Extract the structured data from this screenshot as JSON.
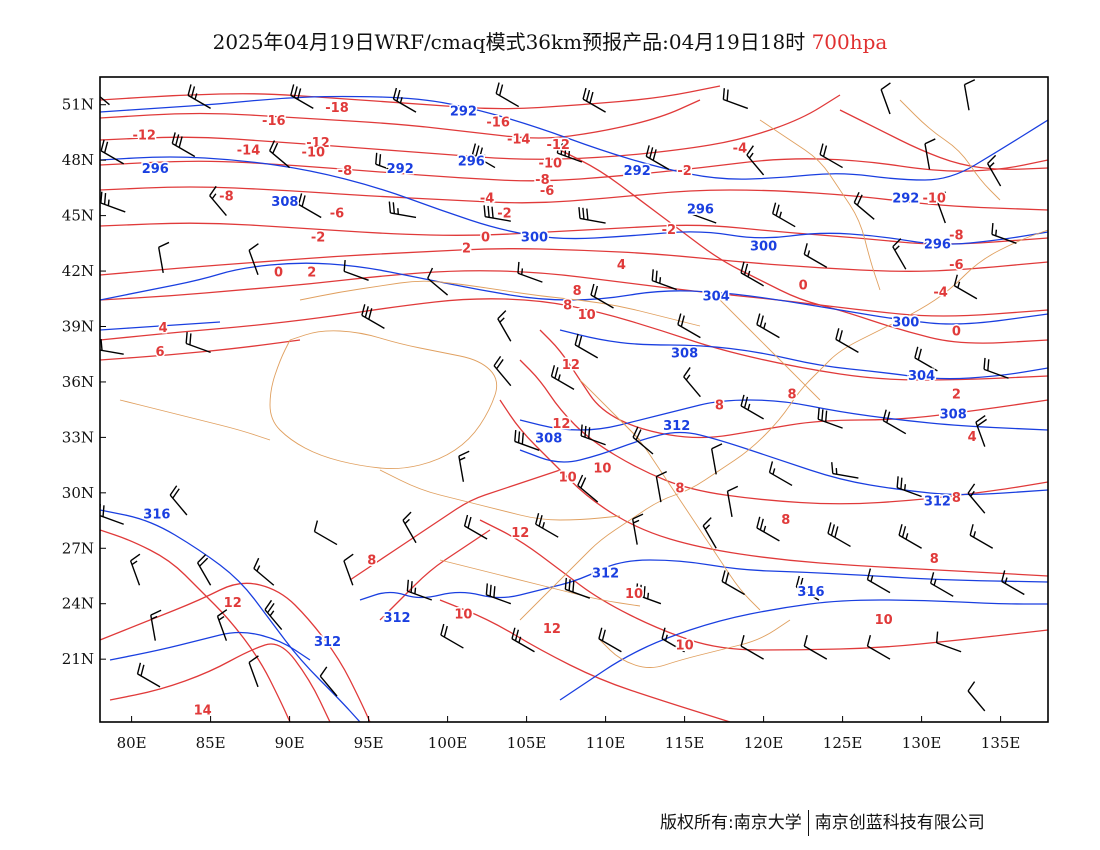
{
  "title": {
    "main": "2025年04月19日WRF/cmaq模式36km预报产品:04月19日18时",
    "level": "700hpa"
  },
  "footer": {
    "left": "版权所有:南京大学",
    "right": "南京创蓝科技有限公司"
  },
  "colors": {
    "height_contour": "#1a3fe0",
    "temperature_contour": "#e03a3a",
    "boundary": "#e0a060",
    "wind_barb": "#000000"
  },
  "axes": {
    "lon_ticks": [
      "80E",
      "85E",
      "90E",
      "95E",
      "100E",
      "105E",
      "110E",
      "115E",
      "120E",
      "125E",
      "130E",
      "135E"
    ],
    "lat_ticks": [
      "51N",
      "48N",
      "45N",
      "42N",
      "39N",
      "36N",
      "33N",
      "30N",
      "27N",
      "24N",
      "21N"
    ]
  },
  "height_labels": [
    {
      "text": "292",
      "lon": 97,
      "lat": 47.5
    },
    {
      "text": "296",
      "lon": 81.5,
      "lat": 47.5
    },
    {
      "text": "292",
      "lon": 101,
      "lat": 50.6
    },
    {
      "text": "296",
      "lon": 101.5,
      "lat": 47.9
    },
    {
      "text": "292",
      "lon": 112,
      "lat": 47.4
    },
    {
      "text": "292",
      "lon": 129,
      "lat": 45.9
    },
    {
      "text": "308",
      "lon": 89.7,
      "lat": 45.7
    },
    {
      "text": "296",
      "lon": 116,
      "lat": 45.3
    },
    {
      "text": "300",
      "lon": 105.5,
      "lat": 43.8
    },
    {
      "text": "300",
      "lon": 120,
      "lat": 43.3
    },
    {
      "text": "296",
      "lon": 131,
      "lat": 43.4
    },
    {
      "text": "304",
      "lon": 117,
      "lat": 40.6
    },
    {
      "text": "300",
      "lon": 129,
      "lat": 39.2
    },
    {
      "text": "308",
      "lon": 115,
      "lat": 37.5
    },
    {
      "text": "304",
      "lon": 130,
      "lat": 36.3
    },
    {
      "text": "308",
      "lon": 132,
      "lat": 34.2
    },
    {
      "text": "312",
      "lon": 114.5,
      "lat": 33.6
    },
    {
      "text": "308",
      "lon": 106.4,
      "lat": 32.9
    },
    {
      "text": "312",
      "lon": 131,
      "lat": 29.5
    },
    {
      "text": "316",
      "lon": 81.6,
      "lat": 28.8
    },
    {
      "text": "312",
      "lon": 110,
      "lat": 25.6
    },
    {
      "text": "316",
      "lon": 123,
      "lat": 24.6
    },
    {
      "text": "312",
      "lon": 96.8,
      "lat": 23.2
    },
    {
      "text": "312",
      "lon": 92.4,
      "lat": 21.9
    }
  ],
  "temperature_labels": [
    {
      "text": "-16",
      "lon": 89,
      "lat": 50.1
    },
    {
      "text": "-18",
      "lon": 93,
      "lat": 50.8
    },
    {
      "text": "-16",
      "lon": 103.2,
      "lat": 50
    },
    {
      "text": "-12",
      "lon": 80.8,
      "lat": 49.3
    },
    {
      "text": "-14",
      "lon": 104.5,
      "lat": 49.1
    },
    {
      "text": "-12",
      "lon": 107,
      "lat": 48.8
    },
    {
      "text": "-12",
      "lon": 91.8,
      "lat": 48.9
    },
    {
      "text": "-14",
      "lon": 87.4,
      "lat": 48.5
    },
    {
      "text": "-10",
      "lon": 91.5,
      "lat": 48.4
    },
    {
      "text": "-10",
      "lon": 106.5,
      "lat": 47.8
    },
    {
      "text": "-4",
      "lon": 118.5,
      "lat": 48.6
    },
    {
      "text": "-8",
      "lon": 93.5,
      "lat": 47.4
    },
    {
      "text": "-8",
      "lon": 106,
      "lat": 46.9
    },
    {
      "text": "-2",
      "lon": 115,
      "lat": 47.4
    },
    {
      "text": "-6",
      "lon": 106.3,
      "lat": 46.3
    },
    {
      "text": "-10",
      "lon": 130.8,
      "lat": 45.9
    },
    {
      "text": "-8",
      "lon": 86,
      "lat": 46
    },
    {
      "text": "-4",
      "lon": 102.5,
      "lat": 45.9
    },
    {
      "text": "-6",
      "lon": 93,
      "lat": 45.1
    },
    {
      "text": "-2",
      "lon": 103.6,
      "lat": 45.1
    },
    {
      "text": "-8",
      "lon": 132.2,
      "lat": 43.9
    },
    {
      "text": "-2",
      "lon": 91.8,
      "lat": 43.8
    },
    {
      "text": "0",
      "lon": 102.4,
      "lat": 43.8
    },
    {
      "text": "-2",
      "lon": 114,
      "lat": 44.2
    },
    {
      "text": "2",
      "lon": 101.2,
      "lat": 43.2
    },
    {
      "text": "-6",
      "lon": 132.2,
      "lat": 42.3
    },
    {
      "text": "4",
      "lon": 111,
      "lat": 42.3
    },
    {
      "text": "0",
      "lon": 89.3,
      "lat": 41.9
    },
    {
      "text": "2",
      "lon": 91.4,
      "lat": 41.9
    },
    {
      "text": "-4",
      "lon": 131.2,
      "lat": 40.8
    },
    {
      "text": "0",
      "lon": 122.5,
      "lat": 41.2
    },
    {
      "text": "8",
      "lon": 108.2,
      "lat": 40.9
    },
    {
      "text": "8",
      "lon": 107.6,
      "lat": 40.1
    },
    {
      "text": "10",
      "lon": 108.8,
      "lat": 39.6
    },
    {
      "text": "4",
      "lon": 82,
      "lat": 38.9
    },
    {
      "text": "0",
      "lon": 132.2,
      "lat": 38.7
    },
    {
      "text": "6",
      "lon": 81.8,
      "lat": 37.6
    },
    {
      "text": "12",
      "lon": 107.8,
      "lat": 36.9
    },
    {
      "text": "8",
      "lon": 121.8,
      "lat": 35.3
    },
    {
      "text": "2",
      "lon": 132.2,
      "lat": 35.3
    },
    {
      "text": "8",
      "lon": 117.2,
      "lat": 34.7
    },
    {
      "text": "12",
      "lon": 107.2,
      "lat": 33.7
    },
    {
      "text": "4",
      "lon": 133.2,
      "lat": 33
    },
    {
      "text": "10",
      "lon": 109.8,
      "lat": 31.3
    },
    {
      "text": "10",
      "lon": 107.6,
      "lat": 30.8
    },
    {
      "text": "8",
      "lon": 114.7,
      "lat": 30.2
    },
    {
      "text": "8",
      "lon": 132.2,
      "lat": 29.7
    },
    {
      "text": "12",
      "lon": 104.6,
      "lat": 27.8
    },
    {
      "text": "8",
      "lon": 121.4,
      "lat": 28.5
    },
    {
      "text": "8",
      "lon": 95.2,
      "lat": 26.3
    },
    {
      "text": "8",
      "lon": 130.8,
      "lat": 26.4
    },
    {
      "text": "10",
      "lon": 111.8,
      "lat": 24.5
    },
    {
      "text": "12",
      "lon": 86.4,
      "lat": 24
    },
    {
      "text": "10",
      "lon": 101,
      "lat": 23.4
    },
    {
      "text": "10",
      "lon": 127.6,
      "lat": 23.1
    },
    {
      "text": "12",
      "lon": 106.6,
      "lat": 22.6
    },
    {
      "text": "10",
      "lon": 115,
      "lat": 21.7
    },
    {
      "text": "14",
      "lon": 84.5,
      "lat": 18.2
    }
  ],
  "wind_barbs": [
    {
      "lon": 78.6,
      "lat": 51.0,
      "dir": 310,
      "spd": 20
    },
    {
      "lon": 85,
      "lat": 50.8,
      "dir": 300,
      "spd": 25
    },
    {
      "lon": 91.5,
      "lat": 50.8,
      "dir": 300,
      "spd": 30
    },
    {
      "lon": 98,
      "lat": 50.6,
      "dir": 300,
      "spd": 25
    },
    {
      "lon": 104.5,
      "lat": 50.9,
      "dir": 300,
      "spd": 20
    },
    {
      "lon": 110,
      "lat": 50.6,
      "dir": 300,
      "spd": 30
    },
    {
      "lon": 119,
      "lat": 50.8,
      "dir": 290,
      "spd": 20
    },
    {
      "lon": 128,
      "lat": 50.5,
      "dir": 340,
      "spd": 10
    },
    {
      "lon": 133,
      "lat": 50.7,
      "dir": 350,
      "spd": 10
    },
    {
      "lon": 79.5,
      "lat": 47.8,
      "dir": 300,
      "spd": 20
    },
    {
      "lon": 84,
      "lat": 48.2,
      "dir": 300,
      "spd": 30
    },
    {
      "lon": 90,
      "lat": 47.6,
      "dir": 310,
      "spd": 20
    },
    {
      "lon": 97,
      "lat": 47.3,
      "dir": 290,
      "spd": 20
    },
    {
      "lon": 103,
      "lat": 47.6,
      "dir": 300,
      "spd": 35
    },
    {
      "lon": 108.5,
      "lat": 47.9,
      "dir": 290,
      "spd": 35
    },
    {
      "lon": 114,
      "lat": 47.5,
      "dir": 300,
      "spd": 30
    },
    {
      "lon": 120,
      "lat": 47.2,
      "dir": 320,
      "spd": 15
    },
    {
      "lon": 125,
      "lat": 47.6,
      "dir": 300,
      "spd": 20
    },
    {
      "lon": 130.5,
      "lat": 47.5,
      "dir": 350,
      "spd": 10
    },
    {
      "lon": 135,
      "lat": 46.6,
      "dir": 330,
      "spd": 15
    },
    {
      "lon": 79.6,
      "lat": 45.2,
      "dir": 290,
      "spd": 25
    },
    {
      "lon": 86,
      "lat": 45.0,
      "dir": 320,
      "spd": 15
    },
    {
      "lon": 92,
      "lat": 44.9,
      "dir": 300,
      "spd": 20
    },
    {
      "lon": 98,
      "lat": 44.9,
      "dir": 280,
      "spd": 25
    },
    {
      "lon": 104,
      "lat": 44.7,
      "dir": 280,
      "spd": 30
    },
    {
      "lon": 110,
      "lat": 44.6,
      "dir": 280,
      "spd": 30
    },
    {
      "lon": 117,
      "lat": 44.6,
      "dir": 290,
      "spd": 20
    },
    {
      "lon": 122,
      "lat": 44.4,
      "dir": 300,
      "spd": 25
    },
    {
      "lon": 127,
      "lat": 44.8,
      "dir": 310,
      "spd": 20
    },
    {
      "lon": 131.5,
      "lat": 44.6,
      "dir": 340,
      "spd": 15
    },
    {
      "lon": 136,
      "lat": 43.5,
      "dir": 290,
      "spd": 15
    },
    {
      "lon": 82,
      "lat": 41.9,
      "dir": 350,
      "spd": 10
    },
    {
      "lon": 88,
      "lat": 41.8,
      "dir": 340,
      "spd": 10
    },
    {
      "lon": 95,
      "lat": 41.5,
      "dir": 290,
      "spd": 10
    },
    {
      "lon": 100,
      "lat": 40.7,
      "dir": 310,
      "spd": 10
    },
    {
      "lon": 106,
      "lat": 41.4,
      "dir": 290,
      "spd": 15
    },
    {
      "lon": 110.5,
      "lat": 40.0,
      "dir": 300,
      "spd": 20
    },
    {
      "lon": 114.5,
      "lat": 41.0,
      "dir": 290,
      "spd": 25
    },
    {
      "lon": 120,
      "lat": 41.2,
      "dir": 300,
      "spd": 25
    },
    {
      "lon": 124,
      "lat": 42.2,
      "dir": 300,
      "spd": 15
    },
    {
      "lon": 129,
      "lat": 42.1,
      "dir": 330,
      "spd": 15
    },
    {
      "lon": 133.5,
      "lat": 40.5,
      "dir": 300,
      "spd": 15
    },
    {
      "lon": 79.5,
      "lat": 37.5,
      "dir": 280,
      "spd": 20
    },
    {
      "lon": 85,
      "lat": 37.6,
      "dir": 290,
      "spd": 20
    },
    {
      "lon": 96,
      "lat": 38.9,
      "dir": 300,
      "spd": 30
    },
    {
      "lon": 104,
      "lat": 38.2,
      "dir": 330,
      "spd": 15
    },
    {
      "lon": 109.5,
      "lat": 37.3,
      "dir": 300,
      "spd": 20
    },
    {
      "lon": 116,
      "lat": 38.4,
      "dir": 300,
      "spd": 20
    },
    {
      "lon": 121,
      "lat": 38.4,
      "dir": 300,
      "spd": 25
    },
    {
      "lon": 126,
      "lat": 37.6,
      "dir": 300,
      "spd": 20
    },
    {
      "lon": 131,
      "lat": 36.6,
      "dir": 300,
      "spd": 20
    },
    {
      "lon": 135.5,
      "lat": 36.2,
      "dir": 290,
      "spd": 20
    },
    {
      "lon": 104,
      "lat": 35.8,
      "dir": 320,
      "spd": 20
    },
    {
      "lon": 108,
      "lat": 35.6,
      "dir": 300,
      "spd": 25
    },
    {
      "lon": 116,
      "lat": 35.2,
      "dir": 320,
      "spd": 15
    },
    {
      "lon": 120,
      "lat": 34.0,
      "dir": 300,
      "spd": 25
    },
    {
      "lon": 125,
      "lat": 33.5,
      "dir": 290,
      "spd": 30
    },
    {
      "lon": 129,
      "lat": 33.2,
      "dir": 300,
      "spd": 20
    },
    {
      "lon": 134,
      "lat": 32.5,
      "dir": 340,
      "spd": 20
    },
    {
      "lon": 105.8,
      "lat": 32.3,
      "dir": 290,
      "spd": 30
    },
    {
      "lon": 110,
      "lat": 32.6,
      "dir": 290,
      "spd": 30
    },
    {
      "lon": 113,
      "lat": 32.1,
      "dir": 310,
      "spd": 20
    },
    {
      "lon": 117,
      "lat": 31.0,
      "dir": 350,
      "spd": 10
    },
    {
      "lon": 121.8,
      "lat": 30.4,
      "dir": 300,
      "spd": 15
    },
    {
      "lon": 126,
      "lat": 30.8,
      "dir": 280,
      "spd": 15
    },
    {
      "lon": 130,
      "lat": 29.8,
      "dir": 290,
      "spd": 25
    },
    {
      "lon": 134,
      "lat": 28.9,
      "dir": 320,
      "spd": 15
    },
    {
      "lon": 101,
      "lat": 30.6,
      "dir": 350,
      "spd": 15
    },
    {
      "lon": 109.5,
      "lat": 29.5,
      "dir": 310,
      "spd": 20
    },
    {
      "lon": 113.5,
      "lat": 29.5,
      "dir": 350,
      "spd": 10
    },
    {
      "lon": 118,
      "lat": 28.7,
      "dir": 350,
      "spd": 10
    },
    {
      "lon": 79.5,
      "lat": 28.3,
      "dir": 290,
      "spd": 20
    },
    {
      "lon": 83.5,
      "lat": 28.8,
      "dir": 320,
      "spd": 20
    },
    {
      "lon": 93,
      "lat": 27.2,
      "dir": 300,
      "spd": 10
    },
    {
      "lon": 98,
      "lat": 27.3,
      "dir": 330,
      "spd": 15
    },
    {
      "lon": 102.5,
      "lat": 27.5,
      "dir": 300,
      "spd": 20
    },
    {
      "lon": 107,
      "lat": 27.6,
      "dir": 300,
      "spd": 25
    },
    {
      "lon": 112,
      "lat": 27.2,
      "dir": 350,
      "spd": 15
    },
    {
      "lon": 117,
      "lat": 27.0,
      "dir": 330,
      "spd": 15
    },
    {
      "lon": 121,
      "lat": 27.4,
      "dir": 300,
      "spd": 25
    },
    {
      "lon": 125.5,
      "lat": 27.1,
      "dir": 300,
      "spd": 30
    },
    {
      "lon": 130,
      "lat": 27.0,
      "dir": 300,
      "spd": 25
    },
    {
      "lon": 134.5,
      "lat": 27.0,
      "dir": 300,
      "spd": 15
    },
    {
      "lon": 80.5,
      "lat": 25.0,
      "dir": 340,
      "spd": 15
    },
    {
      "lon": 85,
      "lat": 25.0,
      "dir": 330,
      "spd": 20
    },
    {
      "lon": 89,
      "lat": 25.0,
      "dir": 310,
      "spd": 15
    },
    {
      "lon": 94,
      "lat": 25.0,
      "dir": 340,
      "spd": 10
    },
    {
      "lon": 99,
      "lat": 24.2,
      "dir": 290,
      "spd": 25
    },
    {
      "lon": 104,
      "lat": 24.0,
      "dir": 290,
      "spd": 30
    },
    {
      "lon": 109,
      "lat": 24.3,
      "dir": 290,
      "spd": 30
    },
    {
      "lon": 113.5,
      "lat": 24.0,
      "dir": 290,
      "spd": 35
    },
    {
      "lon": 118.8,
      "lat": 24.5,
      "dir": 300,
      "spd": 20
    },
    {
      "lon": 123.5,
      "lat": 24.2,
      "dir": 300,
      "spd": 20
    },
    {
      "lon": 128,
      "lat": 24.6,
      "dir": 300,
      "spd": 15
    },
    {
      "lon": 132,
      "lat": 24.4,
      "dir": 300,
      "spd": 15
    },
    {
      "lon": 136.5,
      "lat": 24.5,
      "dir": 300,
      "spd": 15
    },
    {
      "lon": 81.5,
      "lat": 22.0,
      "dir": 350,
      "spd": 15
    },
    {
      "lon": 86,
      "lat": 22.0,
      "dir": 340,
      "spd": 15
    },
    {
      "lon": 89.5,
      "lat": 22.6,
      "dir": 320,
      "spd": 25
    },
    {
      "lon": 101,
      "lat": 21.6,
      "dir": 300,
      "spd": 20
    },
    {
      "lon": 105.5,
      "lat": 21.4,
      "dir": 300,
      "spd": 25
    },
    {
      "lon": 111,
      "lat": 21.4,
      "dir": 300,
      "spd": 20
    },
    {
      "lon": 115,
      "lat": 21.4,
      "dir": 300,
      "spd": 15
    },
    {
      "lon": 120,
      "lat": 21.0,
      "dir": 300,
      "spd": 10
    },
    {
      "lon": 124,
      "lat": 21.0,
      "dir": 300,
      "spd": 10
    },
    {
      "lon": 128,
      "lat": 21.0,
      "dir": 300,
      "spd": 10
    },
    {
      "lon": 132.5,
      "lat": 21.4,
      "dir": 290,
      "spd": 10
    },
    {
      "lon": 81.8,
      "lat": 19.5,
      "dir": 300,
      "spd": 20
    },
    {
      "lon": 88,
      "lat": 19.5,
      "dir": 340,
      "spd": 10
    },
    {
      "lon": 93,
      "lat": 19.0,
      "dir": 320,
      "spd": 10
    },
    {
      "lon": 134,
      "lat": 18.2,
      "dir": 320,
      "spd": 10
    }
  ]
}
